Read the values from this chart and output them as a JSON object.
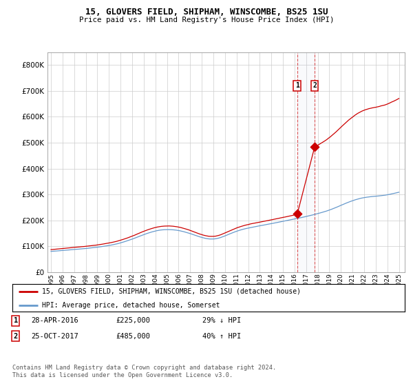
{
  "title1": "15, GLOVERS FIELD, SHIPHAM, WINSCOMBE, BS25 1SU",
  "title2": "Price paid vs. HM Land Registry's House Price Index (HPI)",
  "legend1": "15, GLOVERS FIELD, SHIPHAM, WINSCOMBE, BS25 1SU (detached house)",
  "legend2": "HPI: Average price, detached house, Somerset",
  "transaction1_date": "28-APR-2016",
  "transaction1_price": 225000,
  "transaction1_label": "29% ↓ HPI",
  "transaction2_date": "25-OCT-2017",
  "transaction2_price": 485000,
  "transaction2_label": "40% ↑ HPI",
  "footer": "Contains HM Land Registry data © Crown copyright and database right 2024.\nThis data is licensed under the Open Government Licence v3.0.",
  "red_color": "#cc0000",
  "blue_color": "#6699cc",
  "bg_color": "#ffffff",
  "grid_color": "#cccccc",
  "ylim": [
    0,
    850000
  ],
  "yticks": [
    0,
    100000,
    200000,
    300000,
    400000,
    500000,
    600000,
    700000,
    800000
  ]
}
